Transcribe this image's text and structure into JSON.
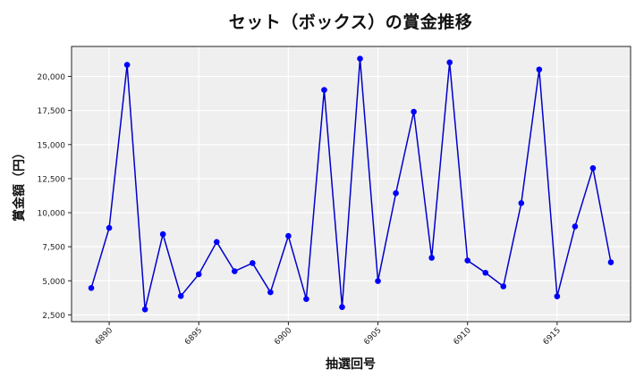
{
  "chart_data": {
    "type": "line",
    "title": "セット（ボックス）の賞金推移",
    "xlabel": "抽選回号",
    "ylabel": "賞金額（円）",
    "x": [
      6889,
      6890,
      6891,
      6892,
      6893,
      6894,
      6895,
      6896,
      6897,
      6898,
      6899,
      6900,
      6901,
      6902,
      6903,
      6904,
      6905,
      6906,
      6907,
      6908,
      6909,
      6910,
      6911,
      6912,
      6913,
      6914,
      6915,
      6916,
      6917,
      6918
    ],
    "series": [
      {
        "name": "セット（ボックス）",
        "color": "#0000cc",
        "marker_color": "#0000ff",
        "values": [
          4470,
          8880,
          20850,
          2900,
          8420,
          3880,
          5480,
          7850,
          5700,
          6300,
          4160,
          8290,
          3660,
          19010,
          3070,
          21300,
          4980,
          11430,
          17410,
          6690,
          21030,
          6490,
          5590,
          4590,
          10700,
          20510,
          3860,
          8990,
          13270,
          6360
        ]
      }
    ],
    "xticks": [
      6890,
      6895,
      6900,
      6905,
      6910,
      6915
    ],
    "yticks": [
      2500,
      5000,
      7500,
      10000,
      12500,
      15000,
      17500,
      20000
    ],
    "ytick_labels": [
      "2,500",
      "5,000",
      "7,500",
      "10,000",
      "12,500",
      "15,000",
      "17,500",
      "20,000"
    ],
    "xlim": [
      6887.9,
      6919.1
    ],
    "ylim": [
      2000,
      22200
    ],
    "grid": true,
    "legend": null,
    "background": "#efefef"
  }
}
